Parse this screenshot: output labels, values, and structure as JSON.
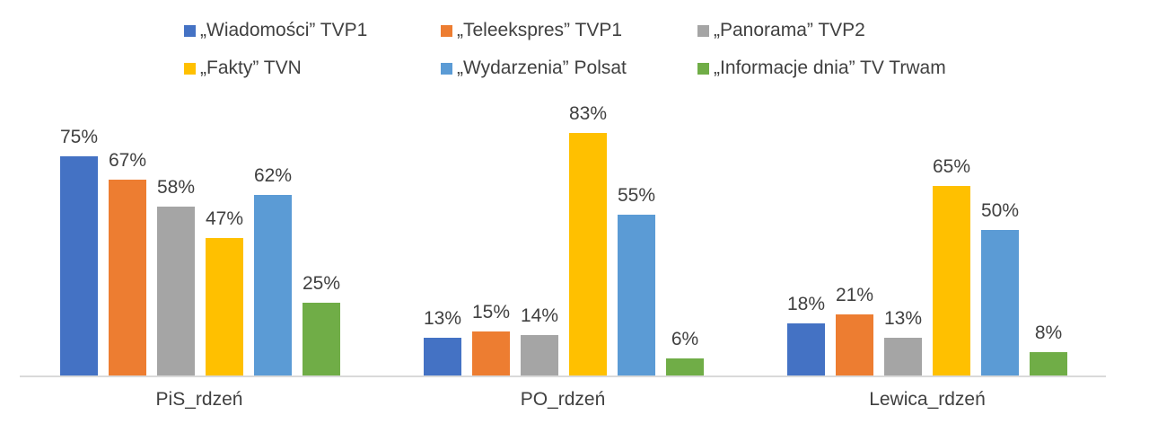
{
  "chart_data": {
    "type": "bar",
    "title": "",
    "xlabel": "",
    "ylabel": "",
    "ylim": [
      0,
      90
    ],
    "grid": false,
    "legend_position": "top",
    "categories": [
      "PiS_rdzeń",
      "PO_rdzeń",
      "Lewica_rdzeń"
    ],
    "series": [
      {
        "name": "„Wiadomości” TVP1",
        "color": "#4472c4",
        "values": [
          75,
          13,
          18
        ],
        "labels": [
          "75%",
          "13%",
          "18%"
        ]
      },
      {
        "name": "„Teleekspres” TVP1",
        "color": "#ed7d31",
        "values": [
          67,
          15,
          21
        ],
        "labels": [
          "67%",
          "15%",
          "21%"
        ]
      },
      {
        "name": "„Panorama” TVP2",
        "color": "#a5a5a5",
        "values": [
          58,
          14,
          13
        ],
        "labels": [
          "58%",
          "14%",
          "13%"
        ]
      },
      {
        "name": "„Fakty” TVN",
        "color": "#ffc000",
        "values": [
          47,
          83,
          65
        ],
        "labels": [
          "47%",
          "83%",
          "65%"
        ]
      },
      {
        "name": "„Wydarzenia” Polsat",
        "color": "#5b9bd5",
        "values": [
          62,
          55,
          50
        ],
        "labels": [
          "62%",
          "55%",
          "50%"
        ]
      },
      {
        "name": "„Informacje dnia” TV Trwam",
        "color": "#70ad47",
        "values": [
          25,
          6,
          8
        ],
        "labels": [
          "25%",
          "6%",
          "8%"
        ]
      }
    ]
  },
  "legend": {
    "items": [
      {
        "label": "„Wiadomości” TVP1",
        "color": "#4472c4"
      },
      {
        "label": "„Teleekspres” TVP1",
        "color": "#ed7d31"
      },
      {
        "label": "„Panorama” TVP2",
        "color": "#a5a5a5"
      },
      {
        "label": "„Fakty” TVN",
        "color": "#ffc000"
      },
      {
        "label": "„Wydarzenia” Polsat",
        "color": "#5b9bd5"
      },
      {
        "label": "„Informacje dnia” TV Trwam",
        "color": "#70ad47"
      }
    ]
  }
}
